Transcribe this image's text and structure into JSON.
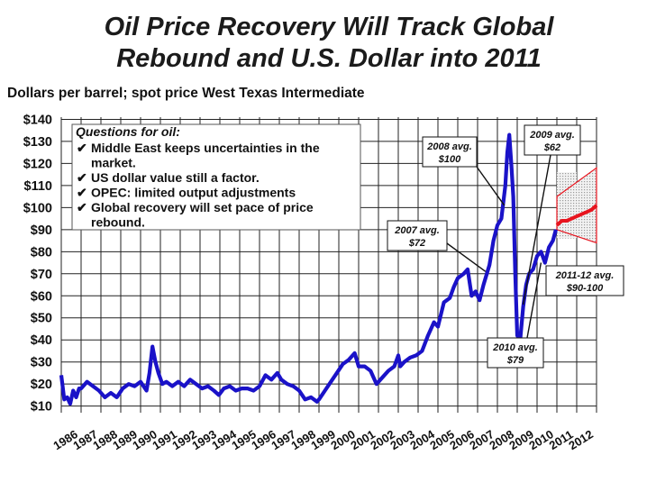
{
  "chart_data": {
    "type": "line",
    "title_line1": "Oil Price Recovery Will Track Global",
    "title_line2": "Rebound and U.S. Dollar into 2011",
    "subtitle": "Dollars per barrel; spot price West Texas Intermediate",
    "y_tick_labels": [
      "$10",
      "$20",
      "$30",
      "$40",
      "$50",
      "$60",
      "$70",
      "$80",
      "$90",
      "$100",
      "$110",
      "$120",
      "$130",
      "$140"
    ],
    "x_tick_labels": [
      "1986",
      "1987",
      "1988",
      "1989",
      "1990",
      "1991",
      "1992",
      "1993",
      "1994",
      "1995",
      "1996",
      "1997",
      "1998",
      "1999",
      "2000",
      "2001",
      "2002",
      "2003",
      "2004",
      "2005",
      "2006",
      "2007",
      "2008",
      "2009",
      "2010",
      "2011",
      "2012"
    ],
    "ylim": [
      7,
      141
    ],
    "xlim": [
      1986.0,
      2013.0
    ],
    "grid": true,
    "series": [
      {
        "role": "history",
        "color": "#1a12c8",
        "x": [
          1986.0,
          1986.15,
          1986.3,
          1986.45,
          1986.6,
          1986.75,
          1986.9,
          1987.0,
          1987.3,
          1987.6,
          1987.9,
          1988.2,
          1988.5,
          1988.8,
          1989.1,
          1989.4,
          1989.7,
          1990.0,
          1990.3,
          1990.45,
          1990.6,
          1990.75,
          1990.9,
          1991.1,
          1991.3,
          1991.6,
          1991.9,
          1992.2,
          1992.5,
          1992.8,
          1993.1,
          1993.4,
          1993.7,
          1993.95,
          1994.2,
          1994.5,
          1994.8,
          1995.1,
          1995.4,
          1995.7,
          1996.0,
          1996.3,
          1996.6,
          1996.9,
          1997.1,
          1997.4,
          1997.7,
          1998.0,
          1998.3,
          1998.6,
          1998.9,
          1999.0,
          1999.3,
          1999.6,
          1999.9,
          2000.2,
          2000.5,
          2000.8,
          2001.0,
          2001.3,
          2001.6,
          2001.9,
          2002.2,
          2002.5,
          2002.8,
          2003.0,
          2003.1,
          2003.3,
          2003.6,
          2003.9,
          2004.2,
          2004.5,
          2004.8,
          2005.0,
          2005.3,
          2005.6,
          2005.8,
          2006.0,
          2006.3,
          2006.5,
          2006.7,
          2006.9,
          2007.1,
          2007.3,
          2007.6,
          2007.8,
          2008.0,
          2008.2,
          2008.4,
          2008.5,
          2008.6,
          2008.7,
          2008.8,
          2008.9,
          2009.0,
          2009.15,
          2009.3,
          2009.45,
          2009.6,
          2009.8,
          2010.0,
          2010.2,
          2010.4,
          2010.6,
          2010.8,
          2010.95
        ],
        "y": [
          24,
          13,
          14,
          11,
          17,
          14,
          18,
          18,
          21,
          19,
          17,
          14,
          16,
          14,
          18,
          20,
          19,
          21,
          17,
          25,
          37,
          30,
          25,
          20,
          21,
          19,
          21,
          19,
          22,
          20,
          18,
          19,
          17,
          15,
          18,
          19,
          17,
          18,
          18,
          17,
          19,
          24,
          22,
          25,
          22,
          20,
          19,
          17,
          13,
          14,
          12,
          13,
          17,
          21,
          25,
          29,
          31,
          34,
          28,
          28,
          26,
          20,
          23,
          26,
          28,
          33,
          28,
          30,
          32,
          33,
          35,
          42,
          48,
          46,
          57,
          59,
          64,
          68,
          70,
          72,
          60,
          62,
          58,
          65,
          74,
          85,
          92,
          95,
          110,
          125,
          133,
          120,
          105,
          70,
          42,
          40,
          55,
          65,
          70,
          72,
          78,
          80,
          75,
          82,
          85,
          90
        ]
      },
      {
        "role": "forecast",
        "color": "#e8141e",
        "x": [
          2011.0,
          2011.25,
          2011.5,
          2011.75,
          2012.0,
          2012.25,
          2012.5,
          2012.75,
          2013.0
        ],
        "y": [
          92,
          94,
          94,
          95,
          96,
          97,
          98,
          99,
          101
        ],
        "band_upper_x": [
          2011.0,
          2013.0
        ],
        "band_upper_y": [
          105,
          118
        ],
        "band_lower_x": [
          2011.0,
          2013.0
        ],
        "band_lower_y": [
          90,
          84
        ]
      }
    ],
    "notes": {
      "heading": "Questions for oil:",
      "items": [
        "Middle East keeps uncertainties in the market.",
        "US dollar value still a factor.",
        "OPEC: limited output adjustments",
        "Global recovery will set pace of price rebound."
      ],
      "item_lines": [
        [
          "Middle East keeps uncertainties in the",
          "market."
        ],
        [
          "US dollar value still a factor."
        ],
        [
          "OPEC: limited output adjustments"
        ],
        [
          "Global recovery will set pace of price",
          "rebound."
        ]
      ],
      "check": "✔"
    },
    "annotations": [
      {
        "line1": "2007 avg.",
        "line2": "$72",
        "point_x": 2007.4,
        "point_y": 71
      },
      {
        "line1": "2008 avg.",
        "line2": "$100",
        "point_x": 2008.35,
        "point_y": 101
      },
      {
        "line1": "2009 avg.",
        "line2": "$62",
        "point_x": 2009.3,
        "point_y": 56
      },
      {
        "line1": "2010 avg.",
        "line2": "$79",
        "point_x": 2010.2,
        "point_y": 75
      },
      {
        "line1": "2011-12 avg.",
        "line2": "$90-100",
        "point_x": null,
        "point_y": null
      }
    ]
  }
}
